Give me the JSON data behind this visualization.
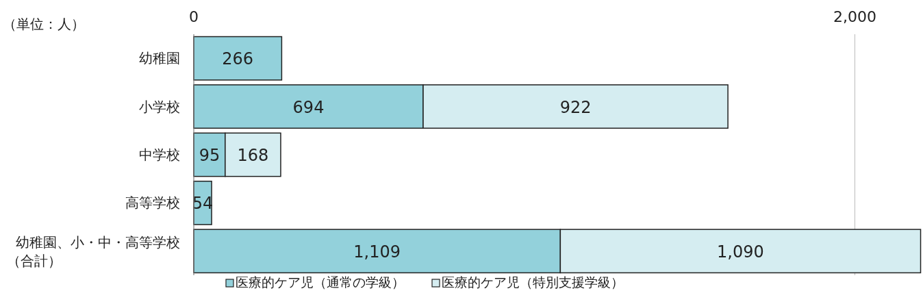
{
  "chart_data": {
    "type": "bar",
    "orientation": "horizontal",
    "stacked": true,
    "categories": [
      "幼稚園",
      "小学校",
      "中学校",
      "高等学校",
      "幼稚園、小・中・高等学校（合計）"
    ],
    "series": [
      {
        "name": "医療的ケア児（通常の学級）",
        "color": "#93d1db",
        "values": [
          266,
          694,
          95,
          54,
          1109
        ],
        "value_labels": [
          "266",
          "694",
          "95",
          "54",
          "1,109"
        ]
      },
      {
        "name": "医療的ケア児（特別支援学級）",
        "color": "#d5edf1",
        "values": [
          null,
          922,
          168,
          null,
          1090
        ],
        "value_labels": [
          null,
          "922",
          "168",
          null,
          "1,090"
        ]
      }
    ],
    "xlim": [
      0,
      2200
    ],
    "xticks": [
      0,
      {
        "value": 2000,
        "label": "2,000"
      }
    ],
    "grid": "x",
    "legend": "bottom",
    "annotations": [
      "（単位：人）"
    ]
  }
}
